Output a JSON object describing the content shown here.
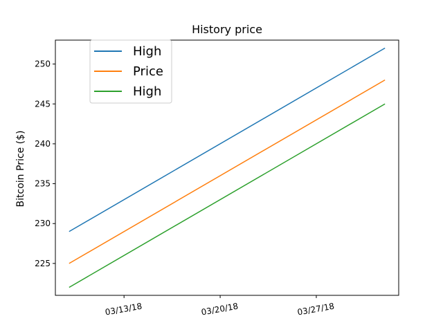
{
  "chart_data": {
    "type": "line",
    "title": "History price",
    "xlabel": "",
    "ylabel": "Bitcoin Price ($)",
    "x_tick_labels": [
      "03/13/18",
      "03/20/18",
      "03/27/18"
    ],
    "x_ticks": [
      "2018-03-13",
      "2018-03-20",
      "2018-03-27"
    ],
    "x": [
      "2018-03-09",
      "2018-04-01"
    ],
    "xlim": [
      "2018-03-08",
      "2018-04-02"
    ],
    "ylim": [
      221,
      253
    ],
    "y_ticks": [
      225,
      230,
      235,
      240,
      245,
      250
    ],
    "grid": false,
    "legend_position": "top-left",
    "series": [
      {
        "name": "High",
        "color": "#1f77b4",
        "values": [
          229,
          252
        ]
      },
      {
        "name": "Price",
        "color": "#ff7f0e",
        "values": [
          225,
          248
        ]
      },
      {
        "name": "High",
        "color": "#2ca02c",
        "values": [
          222,
          245
        ]
      }
    ]
  }
}
